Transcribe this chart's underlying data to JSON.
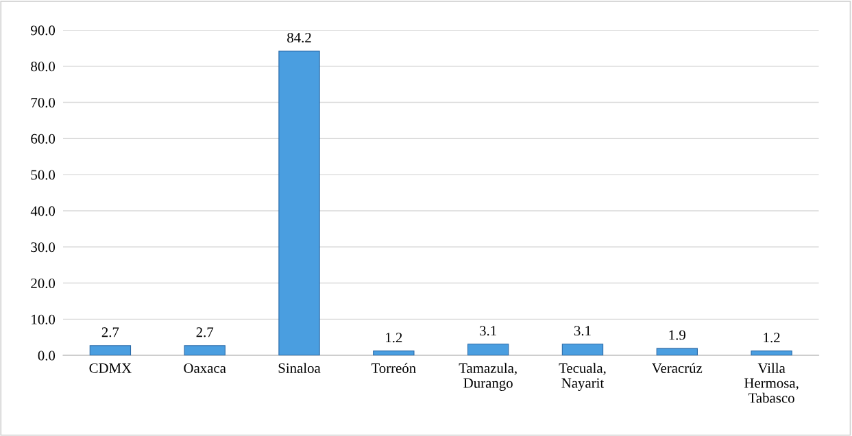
{
  "chart_data": {
    "type": "bar",
    "categories": [
      "CDMX",
      "Oaxaca",
      "Sinaloa",
      "Torreón",
      "Tamazula,\nDurango",
      "Tecuala,\nNayarit",
      "Veracrúz",
      "Villa\nHermosa,\nTabasco"
    ],
    "values": [
      2.7,
      2.7,
      84.2,
      1.2,
      3.1,
      3.1,
      1.9,
      1.2
    ],
    "color": "#4a9ee0",
    "ylim": [
      0,
      90
    ],
    "yticks": [
      {
        "value": 0,
        "label": "0.0"
      },
      {
        "value": 10,
        "label": "10.0"
      },
      {
        "value": 20,
        "label": "20.0"
      },
      {
        "value": 30,
        "label": "30.0"
      },
      {
        "value": 40,
        "label": "40.0"
      },
      {
        "value": 50,
        "label": "50.0"
      },
      {
        "value": 60,
        "label": "60.0"
      },
      {
        "value": 70,
        "label": "70.0"
      },
      {
        "value": 80,
        "label": "80.0"
      },
      {
        "value": 90,
        "label": "90.0"
      }
    ],
    "grid": "y",
    "data_labels": true,
    "legend": false
  }
}
